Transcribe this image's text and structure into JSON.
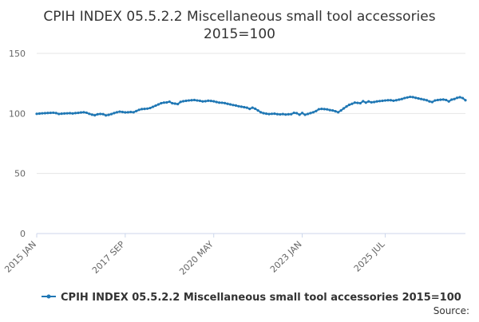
{
  "chart_data": {
    "type": "line",
    "title": "CPIH INDEX 05.5.2.2 Miscellaneous small tool accessories",
    "subtitle": "2015=100",
    "xlabel": "",
    "ylabel": "",
    "ylim": [
      0,
      150
    ],
    "yticks": [
      0,
      50,
      100,
      150
    ],
    "grid": true,
    "legend_position": "bottom",
    "source_label": "Source:",
    "x_tick_labels": [
      "2015 JAN",
      "2017 SEP",
      "2020 MAY",
      "2023 JAN",
      "2025 JUL"
    ],
    "x_start": "2015-01",
    "series": [
      {
        "name": "CPIH INDEX 05.5.2.2 Miscellaneous small tool accessories 2015=100",
        "color": "#1f77b4",
        "values": [
          99.7,
          99.9,
          100.1,
          100.2,
          100.4,
          100.5,
          100.6,
          100.3,
          99.6,
          99.8,
          100.0,
          100.1,
          100.2,
          100.0,
          100.3,
          100.5,
          100.8,
          101.0,
          100.6,
          99.7,
          99.0,
          98.5,
          99.3,
          99.6,
          99.4,
          98.4,
          98.8,
          99.5,
          100.3,
          101.0,
          101.5,
          101.2,
          100.9,
          101.0,
          101.2,
          101.0,
          102.0,
          103.0,
          103.6,
          103.8,
          104.0,
          104.5,
          105.5,
          106.5,
          107.5,
          108.5,
          109.0,
          109.2,
          109.8,
          108.5,
          108.2,
          107.8,
          109.6,
          110.2,
          110.5,
          110.8,
          111.0,
          111.2,
          110.8,
          110.5,
          110.0,
          110.2,
          110.6,
          110.4,
          110.1,
          109.5,
          109.0,
          108.9,
          108.6,
          108.0,
          107.5,
          107.0,
          106.6,
          106.0,
          105.6,
          105.2,
          104.8,
          103.8,
          104.8,
          103.9,
          102.5,
          101.0,
          100.2,
          99.8,
          99.5,
          99.7,
          99.8,
          99.4,
          99.2,
          99.5,
          99.1,
          99.3,
          99.4,
          100.5,
          100.2,
          99.0,
          100.4,
          98.9,
          99.6,
          100.3,
          101.0,
          102.0,
          103.5,
          103.8,
          103.6,
          103.4,
          102.8,
          102.5,
          101.8,
          101.0,
          102.5,
          104.2,
          105.8,
          107.2,
          108.0,
          109.0,
          108.8,
          108.5,
          110.2,
          109.0,
          110.0,
          109.3,
          109.5,
          110.0,
          110.3,
          110.5,
          110.8,
          111.0,
          111.0,
          110.6,
          111.0,
          111.5,
          112.0,
          112.8,
          113.3,
          113.8,
          113.6,
          113.0,
          112.5,
          112.0,
          111.5,
          111.0,
          110.0,
          109.5,
          110.8,
          111.2,
          111.4,
          111.6,
          111.2,
          110.0,
          111.5,
          112.0,
          113.0,
          113.5,
          112.8,
          111.0
        ]
      }
    ]
  }
}
